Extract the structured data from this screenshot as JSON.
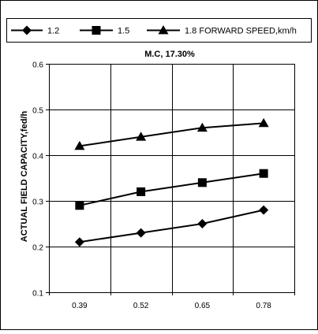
{
  "chart_data": {
    "type": "line",
    "title": "M.C, 17.30%",
    "xlabel": "",
    "ylabel": "ACTUAL FIELD CAPACITY,fed/h",
    "legend_title": "FORWARD SPEED,km/h",
    "legend_position": "top",
    "categories": [
      "0.39",
      "0.52",
      "0.65",
      "0.78"
    ],
    "ylim": [
      0.1,
      0.6
    ],
    "yticks": [
      "0.1",
      "0.2",
      "0.3",
      "0.4",
      "0.5",
      "0.6"
    ],
    "grid": true,
    "series": [
      {
        "name": "1.2",
        "marker": "diamond",
        "values": [
          0.21,
          0.23,
          0.25,
          0.28
        ]
      },
      {
        "name": "1.5",
        "marker": "square",
        "values": [
          0.29,
          0.32,
          0.34,
          0.36
        ]
      },
      {
        "name": "1.8",
        "marker": "triangle",
        "values": [
          0.42,
          0.44,
          0.46,
          0.47
        ]
      }
    ],
    "colors": {
      "line": "#000000",
      "grid": "#000000",
      "background": "#ffffff"
    }
  }
}
